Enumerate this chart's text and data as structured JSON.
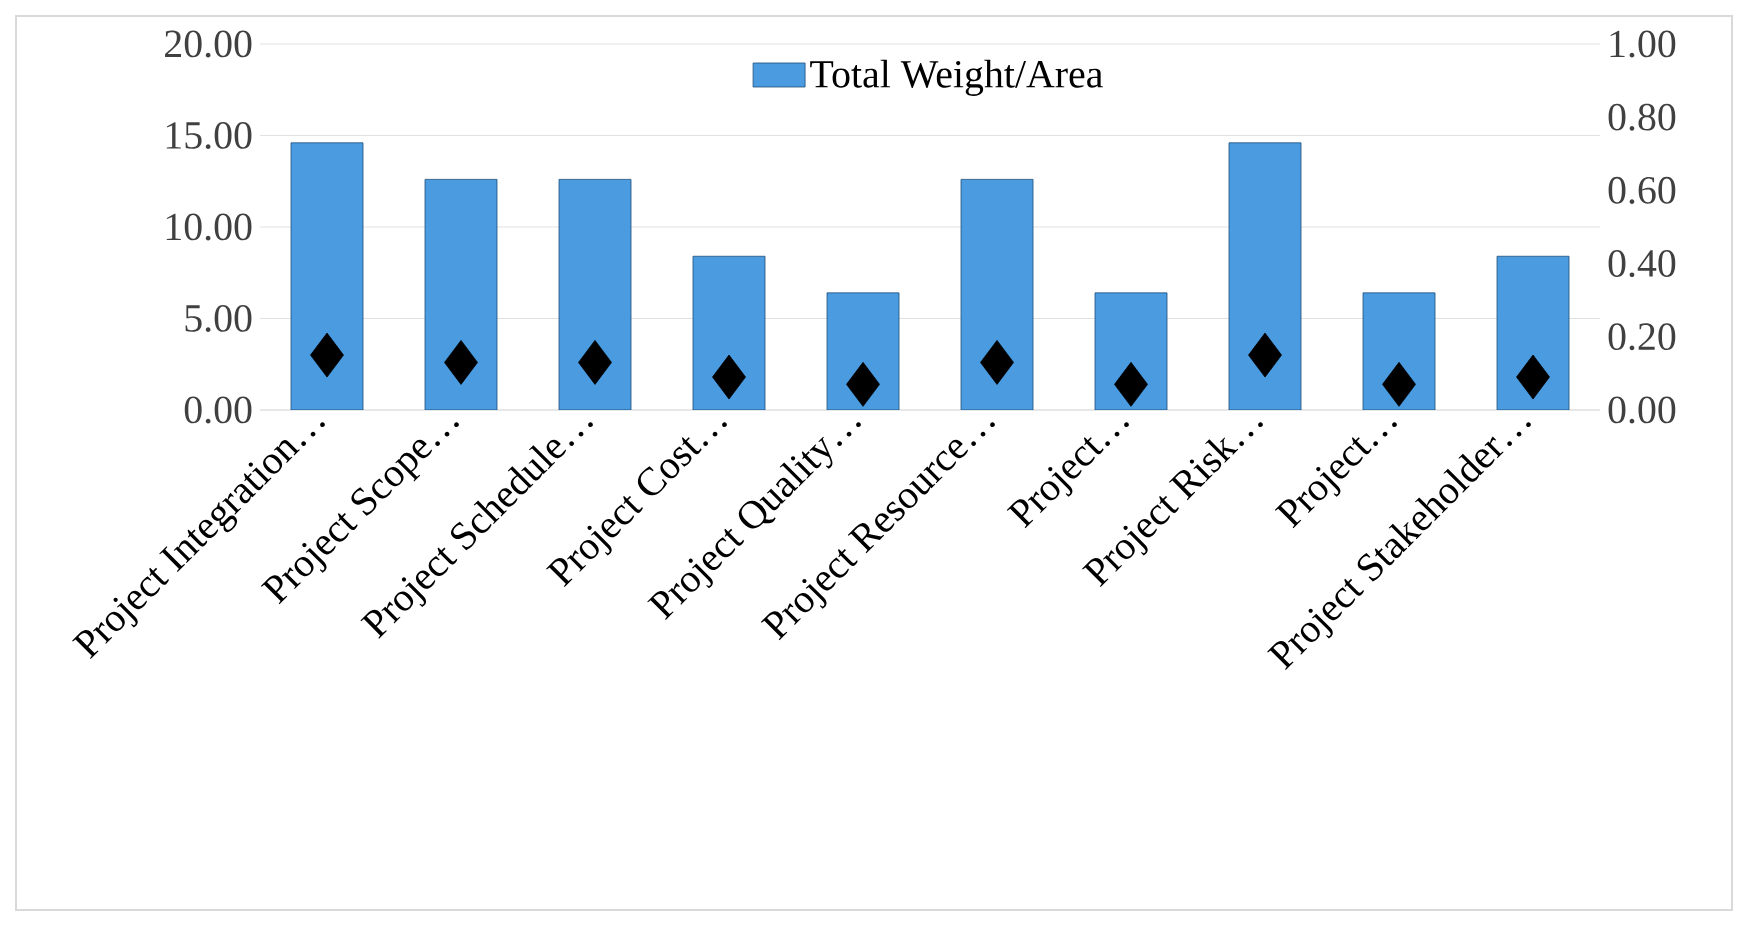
{
  "chart_data": {
    "type": "bar",
    "categories": [
      "Project Integration…",
      "Project Scope…",
      "Project Schedule…",
      "Project Cost…",
      "Project Quality…",
      "Project Resource…",
      "Project…",
      "Project Risk…",
      "Project…",
      "Project Stakeholder…"
    ],
    "series": [
      {
        "name": "Total Weight/Area",
        "color": "#4a9be0",
        "values": [
          14.6,
          12.6,
          12.6,
          8.4,
          6.4,
          12.6,
          6.4,
          14.6,
          6.4,
          8.4
        ]
      },
      {
        "type": "scatter",
        "axis": "y2",
        "color": "#000000",
        "marker": "diamond",
        "values": [
          0.15,
          0.13,
          0.13,
          0.09,
          0.07,
          0.13,
          0.07,
          0.15,
          0.07,
          0.09
        ]
      }
    ],
    "ylim": [
      0,
      20
    ],
    "yticks": [
      {
        "value": 0,
        "label": "0.00"
      },
      {
        "value": 5,
        "label": "5.00"
      },
      {
        "value": 10,
        "label": "10.00"
      },
      {
        "value": 15,
        "label": "15.00"
      },
      {
        "value": 20,
        "label": "20.00"
      }
    ],
    "y2lim": [
      0,
      1
    ],
    "y2ticks": [
      {
        "value": 0,
        "label": "0.00"
      },
      {
        "value": 0.2,
        "label": "0.20"
      },
      {
        "value": 0.4,
        "label": "0.40"
      },
      {
        "value": 0.6,
        "label": "0.60"
      },
      {
        "value": 0.8,
        "label": "0.80"
      },
      {
        "value": 1,
        "label": "1.00"
      }
    ],
    "grid": "y",
    "legend": "top"
  }
}
